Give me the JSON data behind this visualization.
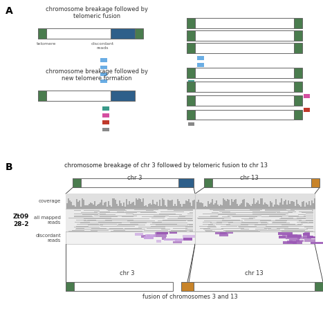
{
  "bg_color": "#ffffff",
  "panel_A_title1": "chromosome breakage followed by\ntelomeric fusion",
  "panel_A_title2": "chromosome breakage followed by\nnew telomere formation",
  "panel_B_title": "chromosome breakage of chr 3 followed by telomeric fusion to chr 13",
  "telomere_color": "#4a7c4e",
  "dark_blue": "#2e5f8a",
  "orange": "#c8842a",
  "chr_border": "#666666",
  "blue_reads": "#6aade4",
  "teal_read": "#3a9a8a",
  "pink_read": "#d44fa0",
  "red_read": "#c0392b",
  "gray_read": "#888888",
  "purple_read": "#9b59b6",
  "font_size": 6.0
}
